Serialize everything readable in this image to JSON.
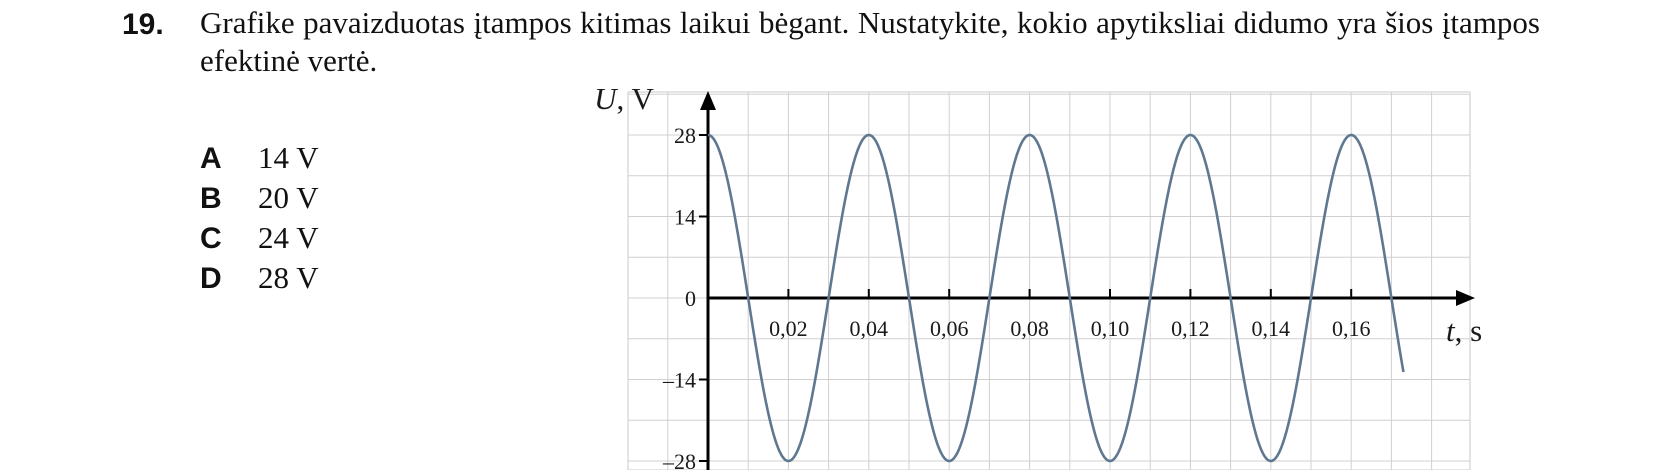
{
  "question": {
    "number": "19.",
    "text": "Grafike pavaizduotas įtampos kitimas laikui bėgant. Nustatykite, kokio apytiksliai didumo yra šios įtampos efektinė vertė."
  },
  "options": [
    {
      "letter": "A",
      "text": "14 V"
    },
    {
      "letter": "B",
      "text": "20 V"
    },
    {
      "letter": "C",
      "text": "24 V"
    },
    {
      "letter": "D",
      "text": "28 V"
    }
  ],
  "chart_data": {
    "type": "line",
    "ylabel_symbol": "U",
    "ylabel_unit": ", V",
    "xlabel_symbol": "t",
    "xlabel_unit": ", s",
    "xlim": [
      0,
      0.17
    ],
    "ylim": [
      -28,
      28
    ],
    "x_ticks": [
      0.02,
      0.04,
      0.06,
      0.08,
      0.1,
      0.12,
      0.14,
      0.16
    ],
    "x_tick_labels": [
      "0,02",
      "0,04",
      "0,06",
      "0,08",
      "0,10",
      "0,12",
      "0,14",
      "0,16"
    ],
    "y_ticks": [
      28,
      14,
      0,
      -14,
      -28
    ],
    "y_tick_labels": [
      "28",
      "14",
      "0",
      "–14",
      "–28"
    ],
    "grid": true,
    "series": [
      {
        "amplitude": 28,
        "period": 0.04,
        "phase": "cosine",
        "t_end": 0.173,
        "color": "#5f7890"
      }
    ]
  }
}
